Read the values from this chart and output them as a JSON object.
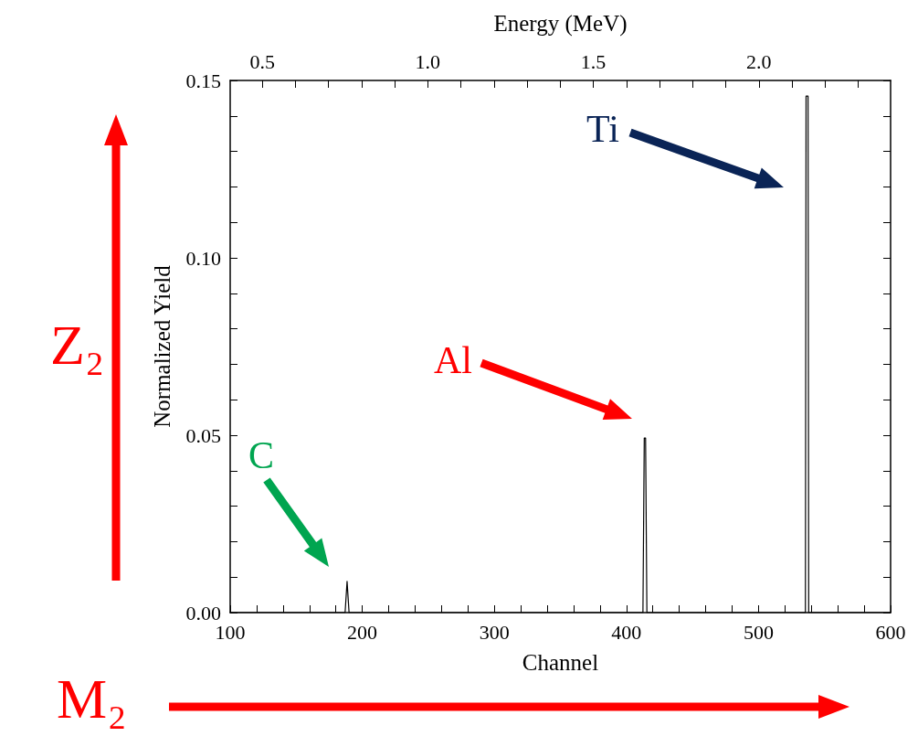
{
  "chart_data": {
    "type": "line",
    "xlabel": "Channel",
    "ylabel": "Normalized Yield",
    "x2label": "Energy (MeV)",
    "x": [
      100,
      187,
      188.5,
      190,
      412.5,
      413.5,
      414.5,
      415.5,
      535.5,
      536,
      537.5,
      538,
      600
    ],
    "series": [
      {
        "color": "#000000",
        "values": [
          0,
          0,
          0.0088,
          0,
          0,
          0.0492,
          0.0492,
          0,
          0,
          0.1456,
          0.1456,
          0,
          0
        ]
      }
    ],
    "xlim": [
      100,
      600
    ],
    "xticks": [
      100,
      {
        "value": 120,
        "label": null
      },
      {
        "value": 140,
        "label": null
      },
      {
        "value": 160,
        "label": null
      },
      {
        "value": 180,
        "label": null
      },
      200,
      {
        "value": 220,
        "label": null
      },
      {
        "value": 240,
        "label": null
      },
      {
        "value": 260,
        "label": null
      },
      {
        "value": 280,
        "label": null
      },
      300,
      {
        "value": 320,
        "label": null
      },
      {
        "value": 340,
        "label": null
      },
      {
        "value": 360,
        "label": null
      },
      {
        "value": 380,
        "label": null
      },
      400,
      {
        "value": 420,
        "label": null
      },
      {
        "value": 440,
        "label": null
      },
      {
        "value": 460,
        "label": null
      },
      {
        "value": 480,
        "label": null
      },
      500,
      {
        "value": 520,
        "label": null
      },
      {
        "value": 540,
        "label": null
      },
      {
        "value": 560,
        "label": null
      },
      {
        "value": 580,
        "label": null
      },
      600
    ],
    "x2lim": [
      0.403,
      2.398
    ],
    "x2ticks": [
      {
        "value": 0.5,
        "label": "0.5"
      },
      {
        "value": 0.6,
        "label": null
      },
      {
        "value": 0.7,
        "label": null
      },
      {
        "value": 0.8,
        "label": null
      },
      {
        "value": 0.9,
        "label": null
      },
      {
        "value": 1.0,
        "label": "1.0"
      },
      {
        "value": 1.1,
        "label": null
      },
      {
        "value": 1.2,
        "label": null
      },
      {
        "value": 1.3,
        "label": null
      },
      {
        "value": 1.4,
        "label": null
      },
      {
        "value": 1.5,
        "label": "1.5"
      },
      {
        "value": 1.6,
        "label": null
      },
      {
        "value": 1.7,
        "label": null
      },
      {
        "value": 1.8,
        "label": null
      },
      {
        "value": 1.9,
        "label": null
      },
      {
        "value": 2.0,
        "label": "2.0"
      },
      {
        "value": 2.1,
        "label": null
      },
      {
        "value": 2.2,
        "label": null
      },
      {
        "value": 2.3,
        "label": null
      }
    ],
    "ylim": [
      0,
      0.15
    ],
    "yticks": [
      {
        "value": 0,
        "label": "0.00"
      },
      {
        "value": 0.01,
        "label": null
      },
      {
        "value": 0.02,
        "label": null
      },
      {
        "value": 0.03,
        "label": null
      },
      {
        "value": 0.04,
        "label": null
      },
      {
        "value": 0.05,
        "label": "0.05"
      },
      {
        "value": 0.06,
        "label": null
      },
      {
        "value": 0.07,
        "label": null
      },
      {
        "value": 0.08,
        "label": null
      },
      {
        "value": 0.09,
        "label": null
      },
      {
        "value": 0.1,
        "label": "0.10"
      },
      {
        "value": 0.11,
        "label": null
      },
      {
        "value": 0.12,
        "label": null
      },
      {
        "value": 0.13,
        "label": null
      },
      {
        "value": 0.14,
        "label": null
      },
      {
        "value": 0.15,
        "label": "0.15"
      }
    ],
    "grid": false,
    "annotations": [
      "C",
      "Al",
      "Ti",
      "Z₂",
      "M₂"
    ]
  }
}
